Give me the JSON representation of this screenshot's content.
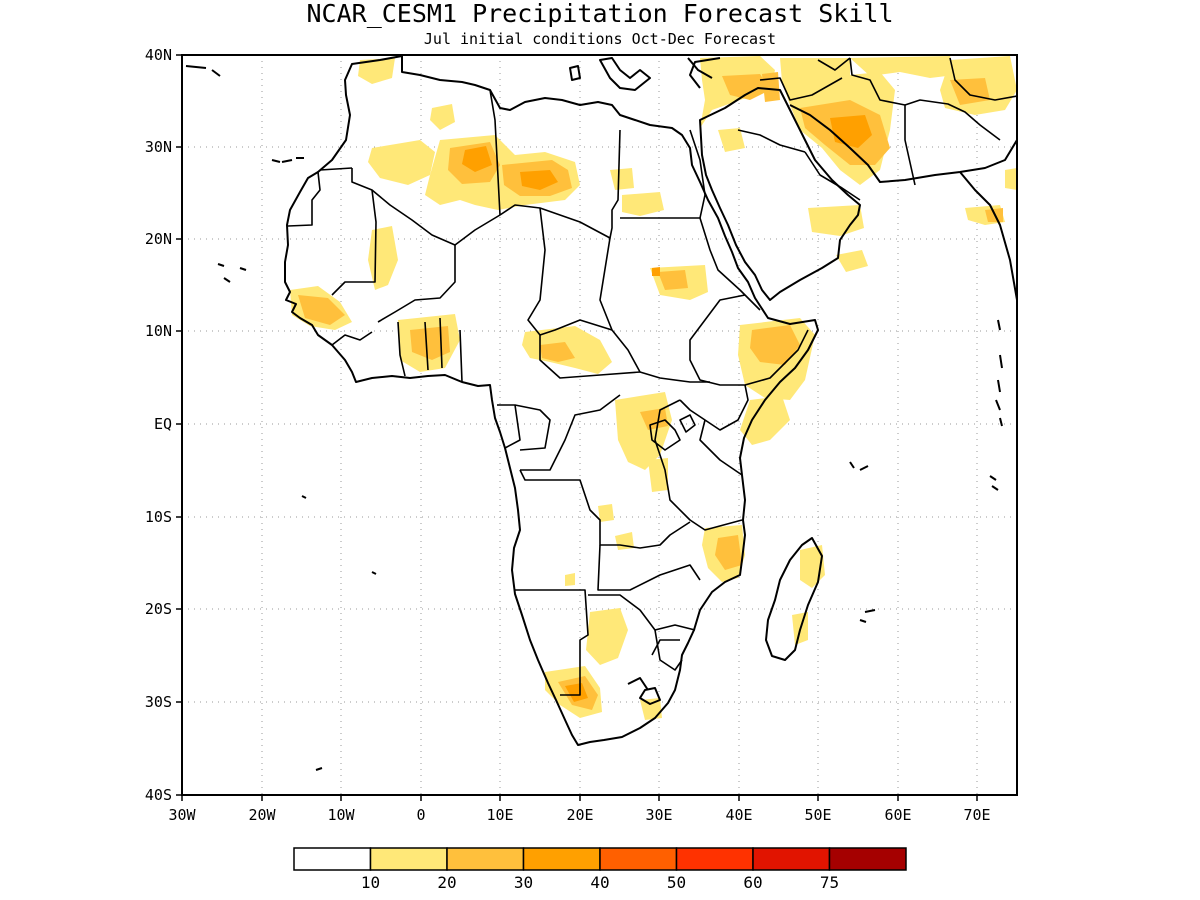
{
  "title": "NCAR_CESM1 Precipitation Forecast Skill",
  "subtitle": "Jul initial conditions  Oct-Dec Forecast",
  "y_ticks": [
    "40N",
    "30N",
    "20N",
    "10N",
    "EQ",
    "10S",
    "20S",
    "30S",
    "40S"
  ],
  "x_ticks": [
    "30W",
    "20W",
    "10W",
    "0",
    "10E",
    "20E",
    "30E",
    "40E",
    "50E",
    "60E",
    "70E"
  ],
  "colorbar": {
    "colors": [
      "#ffffff",
      "#ffe878",
      "#ffc03c",
      "#ffa000",
      "#ff6000",
      "#ff3200",
      "#e11400",
      "#a50000"
    ],
    "labels": [
      "10",
      "20",
      "30",
      "40",
      "50",
      "60",
      "75"
    ]
  },
  "map_data": {
    "region": "Africa",
    "lon_range": [
      -30,
      75
    ],
    "lat_range": [
      -40,
      40
    ],
    "variable": "precipitation forecast skill",
    "skill_levels": [
      10,
      20,
      30,
      40,
      50,
      60,
      75
    ]
  }
}
